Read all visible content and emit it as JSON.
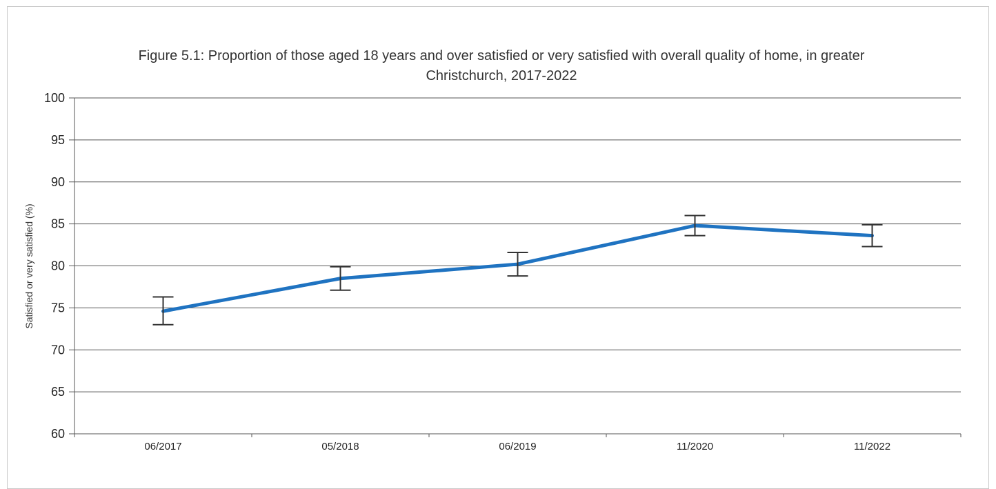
{
  "chart_data": {
    "type": "line",
    "title_lines": [
      "Figure 5.1: Proportion of those aged 18 years and over satisfied or very satisfied with overall quality of home, in greater",
      "Christchurch, 2017-2022"
    ],
    "xlabel": "",
    "ylabel": "Satisfied or very satisfied (%)",
    "categories": [
      "06/2017",
      "05/2018",
      "06/2019",
      "11/2020",
      "11/2022"
    ],
    "series": [
      {
        "values": [
          74.6,
          78.5,
          80.2,
          84.8,
          83.6
        ],
        "error_low": [
          73.0,
          77.1,
          78.8,
          83.6,
          82.3
        ],
        "error_high": [
          76.3,
          79.9,
          81.6,
          86.0,
          84.9
        ],
        "color": "#1f73c1"
      }
    ],
    "ylim": [
      60,
      100
    ],
    "yticks": [
      "60",
      "65",
      "70",
      "75",
      "80",
      "85",
      "90",
      "95",
      "100"
    ],
    "grid": true,
    "gridline_color": "#555555",
    "errorbar_color": "#333333"
  }
}
